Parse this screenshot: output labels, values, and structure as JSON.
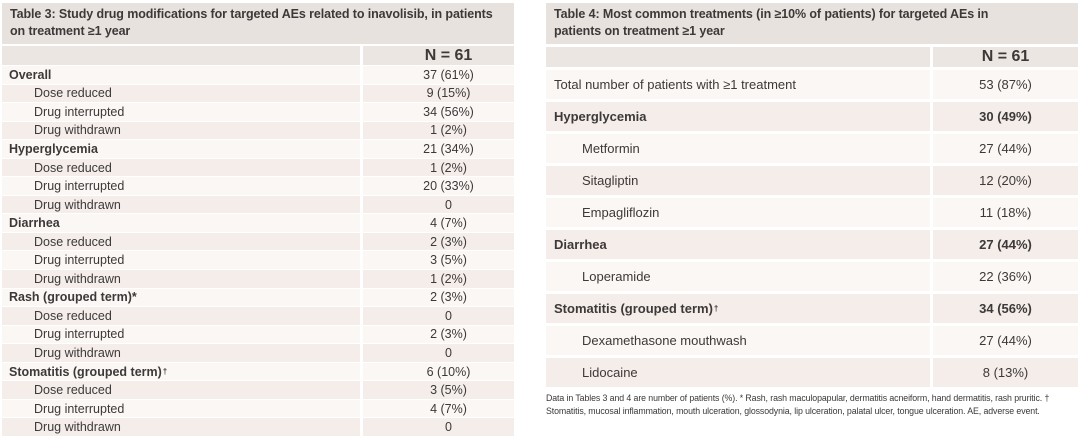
{
  "colors": {
    "title_bg": "#e8e2de",
    "header_bg": "#ece6e2",
    "row_light": "#fbf7f4",
    "row_dark": "#f4edea",
    "text": "#3d3939"
  },
  "table3": {
    "title": "Table 3: Study drug modifications for targeted AEs related to inavolisib, in patients\non treatment ≥1 year",
    "column_header": "N = 61",
    "rows": [
      {
        "label": "Overall",
        "value": "37 (61%)",
        "bold": true,
        "indent": false
      },
      {
        "label": "Dose reduced",
        "value": "9 (15%)",
        "bold": false,
        "indent": true
      },
      {
        "label": "Drug interrupted",
        "value": "34 (56%)",
        "bold": false,
        "indent": true
      },
      {
        "label": "Drug withdrawn",
        "value": "1 (2%)",
        "bold": false,
        "indent": true
      },
      {
        "label": "Hyperglycemia",
        "value": "21 (34%)",
        "bold": true,
        "indent": false
      },
      {
        "label": "Dose reduced",
        "value": "1 (2%)",
        "bold": false,
        "indent": true
      },
      {
        "label": "Drug interrupted",
        "value": "20 (33%)",
        "bold": false,
        "indent": true
      },
      {
        "label": "Drug withdrawn",
        "value": "0",
        "bold": false,
        "indent": true
      },
      {
        "label": "Diarrhea",
        "value": "4 (7%)",
        "bold": true,
        "indent": false
      },
      {
        "label": "Dose reduced",
        "value": "2 (3%)",
        "bold": false,
        "indent": true
      },
      {
        "label": "Drug interrupted",
        "value": "3 (5%)",
        "bold": false,
        "indent": true
      },
      {
        "label": "Drug withdrawn",
        "value": "1 (2%)",
        "bold": false,
        "indent": true
      },
      {
        "label": "Rash (grouped term)*",
        "value": "2 (3%)",
        "bold": true,
        "indent": false
      },
      {
        "label": "Dose reduced",
        "value": "0",
        "bold": false,
        "indent": true
      },
      {
        "label": "Drug interrupted",
        "value": "2 (3%)",
        "bold": false,
        "indent": true
      },
      {
        "label": "Drug withdrawn",
        "value": "0",
        "bold": false,
        "indent": true
      },
      {
        "label": "Stomatitis (grouped term)",
        "marker": "†",
        "value": "6 (10%)",
        "bold": true,
        "indent": false
      },
      {
        "label": "Dose reduced",
        "value": "3 (5%)",
        "bold": false,
        "indent": true
      },
      {
        "label": "Drug interrupted",
        "value": "4 (7%)",
        "bold": false,
        "indent": true
      },
      {
        "label": "Drug withdrawn",
        "value": "0",
        "bold": false,
        "indent": true
      }
    ]
  },
  "table4": {
    "title": "Table 4: Most common treatments (in ≥10% of patients) for targeted AEs in\npatients on treatment ≥1 year",
    "column_header": "N = 61",
    "rows": [
      {
        "label": "Total number of patients with ≥1 treatment",
        "value": "53 (87%)",
        "bold": false,
        "indent": false
      },
      {
        "label": "Hyperglycemia",
        "value": "30 (49%)",
        "bold": true,
        "indent": false
      },
      {
        "label": "Metformin",
        "value": "27 (44%)",
        "bold": false,
        "indent": true
      },
      {
        "label": "Sitagliptin",
        "value": "12 (20%)",
        "bold": false,
        "indent": true
      },
      {
        "label": "Empagliflozin",
        "value": "11 (18%)",
        "bold": false,
        "indent": true
      },
      {
        "label": "Diarrhea",
        "value": "27 (44%)",
        "bold": true,
        "indent": false
      },
      {
        "label": "Loperamide",
        "value": "22 (36%)",
        "bold": false,
        "indent": true
      },
      {
        "label": "Stomatitis (grouped term)",
        "marker": "†",
        "value": "34 (56%)",
        "bold": true,
        "indent": false
      },
      {
        "label": "Dexamethasone mouthwash",
        "value": "27 (44%)",
        "bold": false,
        "indent": true
      },
      {
        "label": "Lidocaine",
        "value": "8 (13%)",
        "bold": false,
        "indent": true
      }
    ]
  },
  "footnote": "Data in Tables 3 and 4 are number of patients (%). * Rash, rash maculopapular, dermatitis acneiform, hand dermatitis, rash pruritic. † Stomatitis, mucosal inflammation, mouth ulceration, glossodynia, lip ulceration, palatal ulcer, tongue ulceration. AE, adverse event."
}
